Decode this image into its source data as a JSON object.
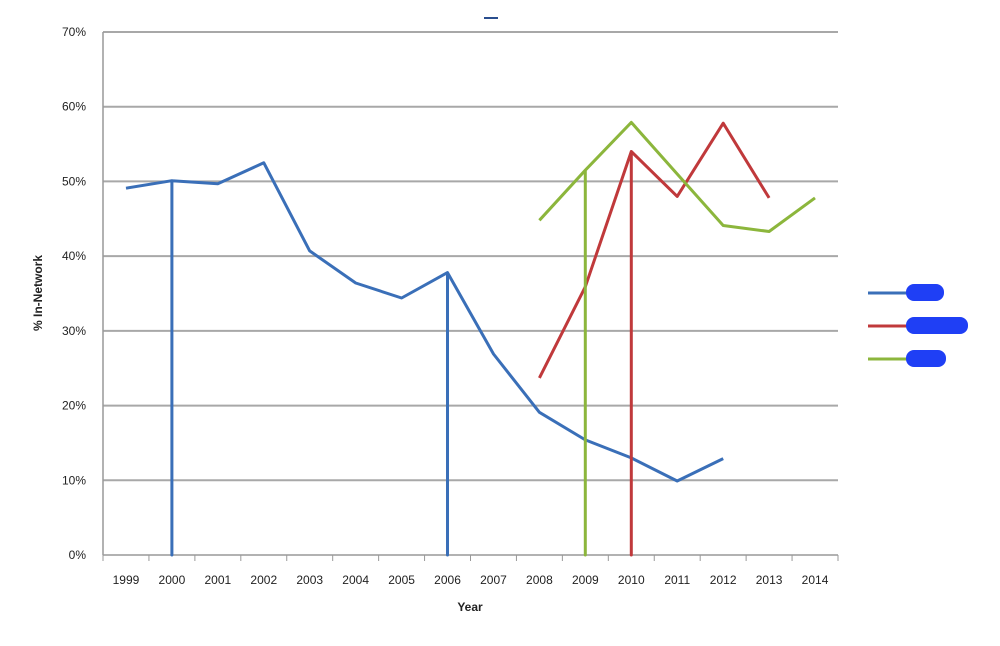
{
  "chart_data": {
    "type": "line",
    "title": "",
    "xlabel": "Year",
    "ylabel": "% In-Network",
    "ylim": [
      0,
      70
    ],
    "yticks": [
      "0%",
      "10%",
      "20%",
      "30%",
      "40%",
      "50%",
      "60%",
      "70%"
    ],
    "grid": true,
    "legend_position": "right",
    "categories": [
      "1999",
      "2000",
      "2001",
      "2002",
      "2003",
      "2004",
      "2005",
      "2006",
      "2007",
      "2008",
      "2009",
      "2010",
      "2011",
      "2012",
      "2013",
      "2014"
    ],
    "series": [
      {
        "name": "",
        "color": "#3a6fb8",
        "redacted": true,
        "values": [
          49.1,
          50.1,
          49.7,
          52.5,
          40.7,
          36.4,
          34.4,
          37.8,
          26.9,
          19.1,
          15.4,
          13.0,
          9.9,
          12.9,
          null,
          null
        ],
        "drop_to_zero": [
          "2000",
          "2006"
        ]
      },
      {
        "name": "",
        "color": "#c0393b",
        "redacted": true,
        "values": [
          null,
          null,
          null,
          null,
          null,
          null,
          null,
          null,
          null,
          23.7,
          35.9,
          54.0,
          48.0,
          57.8,
          47.8,
          null
        ],
        "drop_to_zero": [
          "2010"
        ]
      },
      {
        "name": "",
        "color": "#8cb63c",
        "redacted": true,
        "values": [
          null,
          null,
          null,
          null,
          null,
          null,
          null,
          null,
          null,
          44.8,
          51.5,
          57.9,
          51.0,
          44.1,
          43.3,
          47.8
        ],
        "drop_to_zero": [
          "2009"
        ]
      }
    ]
  }
}
